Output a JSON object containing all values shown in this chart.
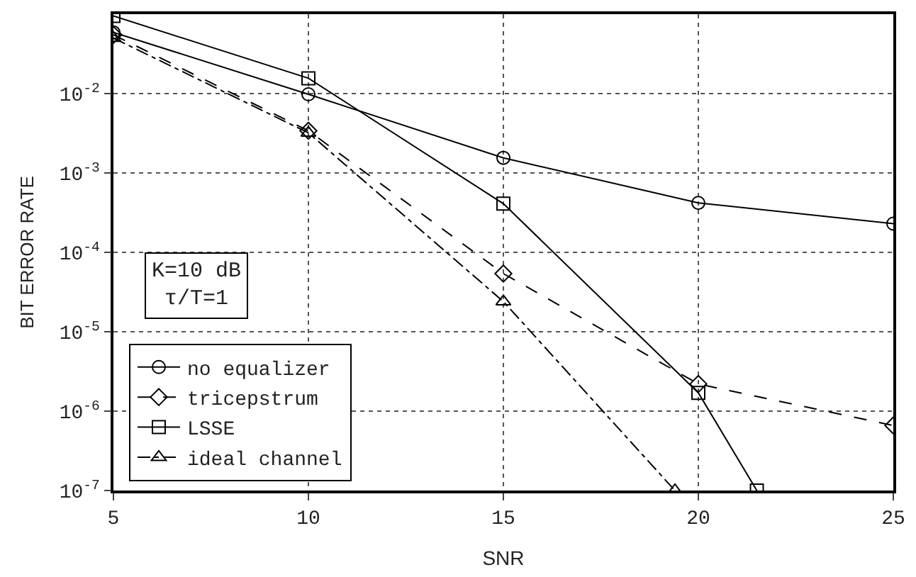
{
  "chart_data": {
    "type": "line",
    "xlabel": "SNR",
    "ylabel": "BIT ERROR RATE",
    "x": [
      5,
      10,
      15,
      20,
      25
    ],
    "series": [
      {
        "name": "no equalizer",
        "color": "#000000",
        "marker": "circle",
        "line_style": "solid",
        "values": [
          0.059,
          0.0098,
          0.00155,
          0.00042,
          0.00023
        ]
      },
      {
        "name": "tricepstrum",
        "color": "#000000",
        "marker": "diamond",
        "line_style": "dashed",
        "values": [
          0.055,
          0.0034,
          5.4e-05,
          2.2e-06,
          6.6e-07
        ]
      },
      {
        "name": "LSSE",
        "color": "#000000",
        "marker": "square",
        "line_style": "solid",
        "x": [
          5,
          10,
          15,
          20,
          21.5
        ],
        "values": [
          0.095,
          0.0156,
          0.00041,
          1.7e-06,
          1e-07
        ]
      },
      {
        "name": "ideal channel",
        "color": "#000000",
        "marker": "triangle",
        "line_style": "dashdot",
        "x": [
          5,
          10,
          15,
          19.4
        ],
        "values": [
          0.05,
          0.0032,
          2.4e-05,
          1e-07
        ]
      }
    ],
    "log": "y",
    "xlim": [
      5,
      25
    ],
    "ylim": [
      1e-07,
      0.1
    ],
    "xticks": [
      5,
      10,
      15,
      20,
      25
    ],
    "yticks": [
      {
        "value": 0.01,
        "label": "10$^{-2}$"
      },
      {
        "value": 0.001,
        "label": "10$^{-3}$"
      },
      {
        "value": 0.0001,
        "label": "10$^{-4}$"
      },
      {
        "value": 1e-05,
        "label": "10$^{-5}$"
      },
      {
        "value": 1e-06,
        "label": "10$^{-6}$"
      },
      {
        "value": 1e-07,
        "label": "10$^{-7}$"
      }
    ],
    "grid": true,
    "legend": "bottom left",
    "annotations": [
      "K=10 dB\nτ/T=1"
    ]
  }
}
